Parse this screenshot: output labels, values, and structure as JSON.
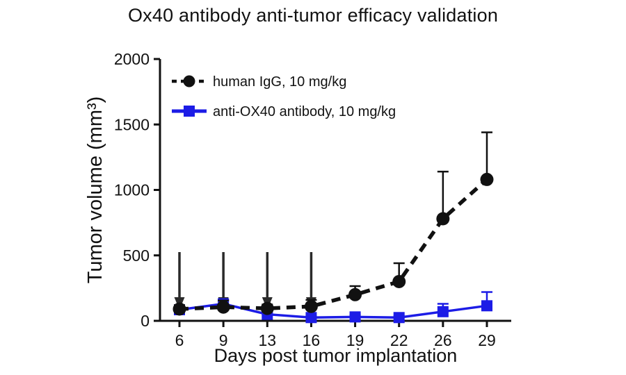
{
  "chart_data": {
    "type": "line",
    "title": "Ox40 antibody anti-tumor efficacy validation",
    "xlabel": "Days post tumor implantation",
    "ylabel": "Tumor volume (mm³)",
    "ylim": [
      0,
      2000
    ],
    "yticks": [
      0,
      500,
      1000,
      1500,
      2000
    ],
    "categories": [
      6,
      9,
      13,
      16,
      19,
      22,
      26,
      29
    ],
    "series": [
      {
        "name": "human IgG, 10 mg/kg",
        "color": "#111111",
        "marker": "circle",
        "line_style": "dashed",
        "values": [
          90,
          105,
          95,
          110,
          200,
          300,
          780,
          1080
        ],
        "errors_up": [
          30,
          50,
          30,
          50,
          65,
          140,
          360,
          360
        ]
      },
      {
        "name": "anti-OX40 antibody, 10 mg/kg",
        "color": "#1c1ce6",
        "marker": "square",
        "line_style": "solid",
        "values": [
          85,
          130,
          50,
          25,
          30,
          25,
          70,
          115
        ],
        "errors_up": [
          20,
          30,
          15,
          10,
          15,
          10,
          60,
          105
        ]
      }
    ],
    "annotations": {
      "dose_arrow_days": [
        6,
        9,
        13,
        16
      ]
    },
    "legend_position": "top-left",
    "grid": false,
    "axis_color": "#111111"
  }
}
